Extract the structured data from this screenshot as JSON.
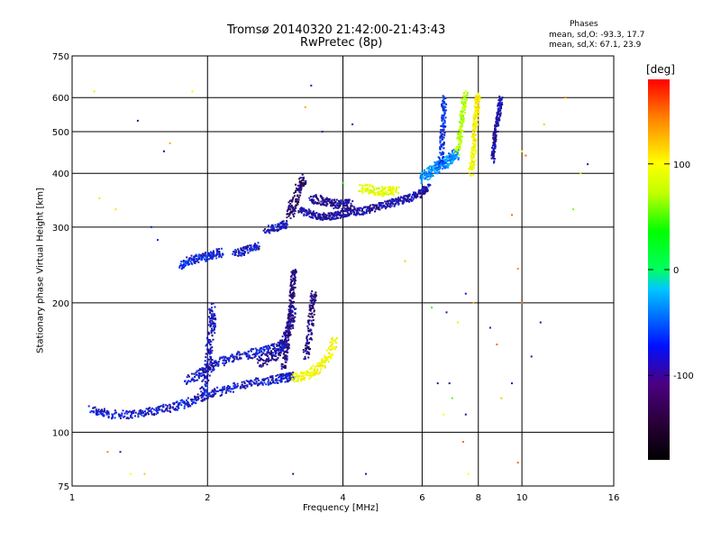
{
  "chart_data": {
    "type": "scatter",
    "title": "Tromsø 20140320 21:42:00-21:43:43",
    "subtitle": "RwPretec (8p)",
    "xlabel": "Frequency [MHz]",
    "ylabel": "Stationary phase Virtual Height [km]",
    "x_scale": "log",
    "y_scale": "log",
    "xlim": [
      1,
      16
    ],
    "ylim": [
      75,
      750
    ],
    "x_ticks": [
      1,
      2,
      4,
      6,
      8,
      10,
      16
    ],
    "y_ticks": [
      75,
      100,
      200,
      300,
      400,
      500,
      600,
      750
    ],
    "grid": true,
    "phases": {
      "title": "Phases",
      "o_line": "mean, sd,O: -93.3, 17.7",
      "x_line": "mean, sd,X: 67.1, 23.9"
    },
    "colorbar": {
      "unit": "[deg]",
      "range": [
        -180,
        180
      ],
      "ticks": [
        100,
        0,
        -100
      ],
      "colormap": "rainbow"
    },
    "traces": [
      {
        "x": [
          1.1,
          1.2,
          1.35,
          1.5,
          1.65,
          1.8,
          1.95,
          2.1,
          2.35,
          2.6,
          2.85,
          3.0,
          3.1
        ],
        "y": [
          113,
          110,
          110,
          112,
          114,
          117,
          121,
          124,
          128,
          131,
          133,
          134,
          135
        ],
        "phase": -100,
        "spread": 0.028
      },
      {
        "x": [
          1.8,
          1.95,
          2.1,
          2.3,
          2.5,
          2.7,
          2.9,
          3.0
        ],
        "y": [
          132,
          138,
          145,
          150,
          152,
          155,
          158,
          160
        ],
        "phase": -100,
        "spread": 0.03
      },
      {
        "x": [
          1.95,
          2.0,
          2.02,
          2.05,
          2.05
        ],
        "y": [
          125,
          140,
          160,
          180,
          195
        ],
        "phase": -105,
        "spread": 0.035
      },
      {
        "x": [
          2.6,
          2.8,
          2.95,
          3.05,
          3.1
        ],
        "y": [
          145,
          150,
          160,
          175,
          195
        ],
        "phase": -115,
        "spread": 0.035
      },
      {
        "x": [
          2.95,
          3.0,
          3.05,
          3.08,
          3.1,
          3.12
        ],
        "y": [
          140,
          160,
          185,
          205,
          225,
          240
        ],
        "phase": -120,
        "spread": 0.025
      },
      {
        "x": [
          3.3,
          3.38,
          3.42,
          3.45
        ],
        "y": [
          150,
          170,
          195,
          212
        ],
        "phase": -120,
        "spread": 0.03
      },
      {
        "x": [
          3.1,
          3.3,
          3.5,
          3.7,
          3.85
        ],
        "y": [
          133,
          136,
          140,
          148,
          165
        ],
        "phase": 95,
        "spread": 0.03
      },
      {
        "x": [
          1.75,
          1.85,
          1.95,
          2.05,
          2.15
        ],
        "y": [
          245,
          252,
          255,
          258,
          262
        ],
        "phase": -95,
        "spread": 0.03
      },
      {
        "x": [
          2.3,
          2.45,
          2.6
        ],
        "y": [
          260,
          265,
          272
        ],
        "phase": -100,
        "spread": 0.025
      },
      {
        "x": [
          2.7,
          2.9,
          3.0
        ],
        "y": [
          295,
          300,
          305
        ],
        "phase": -105,
        "spread": 0.025
      },
      {
        "x": [
          3.05,
          3.1,
          3.2,
          3.3
        ],
        "y": [
          320,
          340,
          370,
          390
        ],
        "phase": -125,
        "spread": 0.035
      },
      {
        "x": [
          3.2,
          3.4,
          3.6,
          3.8,
          4.0,
          4.2,
          4.5,
          4.8,
          5.1,
          5.4,
          5.7,
          6.0,
          6.2
        ],
        "y": [
          330,
          320,
          318,
          318,
          322,
          325,
          328,
          335,
          340,
          346,
          352,
          362,
          372
        ],
        "phase": -110,
        "spread": 0.025
      },
      {
        "x": [
          3.4,
          3.6,
          3.8,
          4.0,
          4.2
        ],
        "y": [
          350,
          345,
          340,
          338,
          340
        ],
        "phase": -115,
        "spread": 0.03
      },
      {
        "x": [
          4.4,
          4.7,
          5.0,
          5.3
        ],
        "y": [
          370,
          365,
          362,
          365
        ],
        "phase": 90,
        "spread": 0.03
      },
      {
        "x": [
          6.0,
          6.2,
          6.4,
          6.6,
          6.8,
          7.0,
          7.2
        ],
        "y": [
          390,
          400,
          410,
          420,
          425,
          435,
          445
        ],
        "phase": -60,
        "spread": 0.035
      },
      {
        "x": [
          6.6,
          6.65,
          6.7,
          6.72
        ],
        "y": [
          420,
          480,
          540,
          600
        ],
        "phase": -90,
        "spread": 0.025
      },
      {
        "x": [
          7.7,
          7.8,
          7.85,
          7.9,
          7.95,
          8.0
        ],
        "y": [
          400,
          440,
          490,
          540,
          580,
          610
        ],
        "phase": 100,
        "spread": 0.025
      },
      {
        "x": [
          8.6,
          8.7,
          8.8,
          8.9,
          9.0
        ],
        "y": [
          430,
          480,
          520,
          560,
          600
        ],
        "phase": -110,
        "spread": 0.02
      },
      {
        "x": [
          7.2,
          7.3,
          7.4,
          7.5
        ],
        "y": [
          450,
          500,
          560,
          620
        ],
        "phase": 75,
        "spread": 0.025
      }
    ],
    "scatter": [
      [
        1.12,
        620,
        75
      ],
      [
        1.4,
        530,
        -110
      ],
      [
        1.6,
        450,
        -120
      ],
      [
        1.65,
        470,
        130
      ],
      [
        1.15,
        350,
        110
      ],
      [
        1.25,
        330,
        110
      ],
      [
        1.5,
        300,
        -95
      ],
      [
        1.55,
        280,
        -90
      ],
      [
        1.85,
        620,
        90
      ],
      [
        1.2,
        90,
        140
      ],
      [
        1.28,
        90,
        -100
      ],
      [
        1.35,
        80,
        100
      ],
      [
        1.45,
        80,
        120
      ],
      [
        3.1,
        80,
        -120
      ],
      [
        4.5,
        80,
        -110
      ],
      [
        7.6,
        80,
        100
      ],
      [
        9.8,
        85,
        150
      ],
      [
        9.0,
        120,
        120
      ],
      [
        9.5,
        130,
        -100
      ],
      [
        10.5,
        150,
        -110
      ],
      [
        11.0,
        180,
        -110
      ],
      [
        14.0,
        420,
        -110
      ],
      [
        13.5,
        400,
        70
      ],
      [
        12.5,
        600,
        140
      ],
      [
        11.2,
        520,
        120
      ],
      [
        10.0,
        450,
        100
      ],
      [
        10.2,
        440,
        150
      ],
      [
        13.0,
        330,
        60
      ],
      [
        9.5,
        320,
        150
      ],
      [
        9.8,
        240,
        140
      ],
      [
        6.3,
        195,
        40
      ],
      [
        6.8,
        190,
        -110
      ],
      [
        7.2,
        180,
        80
      ],
      [
        7.5,
        210,
        -105
      ],
      [
        7.8,
        200,
        130
      ],
      [
        6.5,
        130,
        -110
      ],
      [
        7.0,
        120,
        50
      ],
      [
        6.7,
        110,
        100
      ],
      [
        7.5,
        110,
        -120
      ],
      [
        6.9,
        130,
        -115
      ],
      [
        8.5,
        175,
        -105
      ],
      [
        8.8,
        160,
        150
      ],
      [
        10.0,
        200,
        150
      ],
      [
        7.4,
        95,
        150
      ],
      [
        3.3,
        570,
        130
      ],
      [
        3.6,
        500,
        -105
      ],
      [
        3.4,
        640,
        -105
      ],
      [
        4.2,
        520,
        -110
      ],
      [
        4.0,
        380,
        35
      ],
      [
        5.5,
        250,
        120
      ]
    ]
  }
}
